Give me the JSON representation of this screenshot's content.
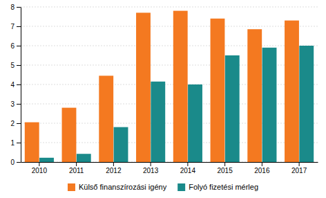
{
  "chart_data": {
    "type": "bar",
    "categories": [
      "2010",
      "2011",
      "2012",
      "2013",
      "2014",
      "2015",
      "2016",
      "2017"
    ],
    "series": [
      {
        "name": "Külső finanszírozási igény",
        "color": "#f47920",
        "values": [
          2.05,
          2.8,
          4.45,
          7.7,
          7.8,
          7.4,
          6.85,
          7.3
        ]
      },
      {
        "name": "Folyó fizetési mérleg",
        "color": "#1a8a8a",
        "values": [
          0.22,
          0.42,
          1.8,
          4.15,
          4.0,
          5.5,
          5.9,
          6.0
        ]
      }
    ],
    "ylim": [
      0,
      8
    ],
    "yticks": [
      0,
      1,
      2,
      3,
      4,
      5,
      6,
      7,
      8
    ],
    "grid": true,
    "legend": "bottom"
  }
}
